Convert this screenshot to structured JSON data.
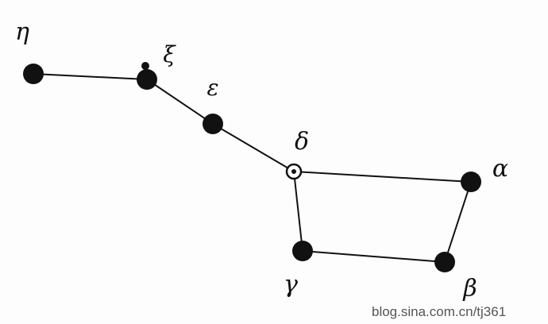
{
  "diagram": {
    "stars": [
      {
        "id": "eta",
        "label": "η",
        "style": "filled"
      },
      {
        "id": "xi",
        "label": "ξ",
        "style": "filled-double"
      },
      {
        "id": "epsilon",
        "label": "ε",
        "style": "filled"
      },
      {
        "id": "delta",
        "label": "δ",
        "style": "ringed"
      },
      {
        "id": "alpha",
        "label": "α",
        "style": "filled"
      },
      {
        "id": "beta",
        "label": "β",
        "style": "filled"
      },
      {
        "id": "gamma",
        "label": "γ",
        "style": "filled"
      }
    ],
    "connections": [
      [
        "eta",
        "xi"
      ],
      [
        "xi",
        "epsilon"
      ],
      [
        "epsilon",
        "delta"
      ],
      [
        "delta",
        "alpha"
      ],
      [
        "alpha",
        "beta"
      ],
      [
        "beta",
        "gamma"
      ],
      [
        "gamma",
        "delta"
      ]
    ]
  },
  "watermark": "blog.sina.com.cn/tj361",
  "colors": {
    "ink": "#111111",
    "background": "#fdfdfd",
    "watermark": "#555555"
  }
}
